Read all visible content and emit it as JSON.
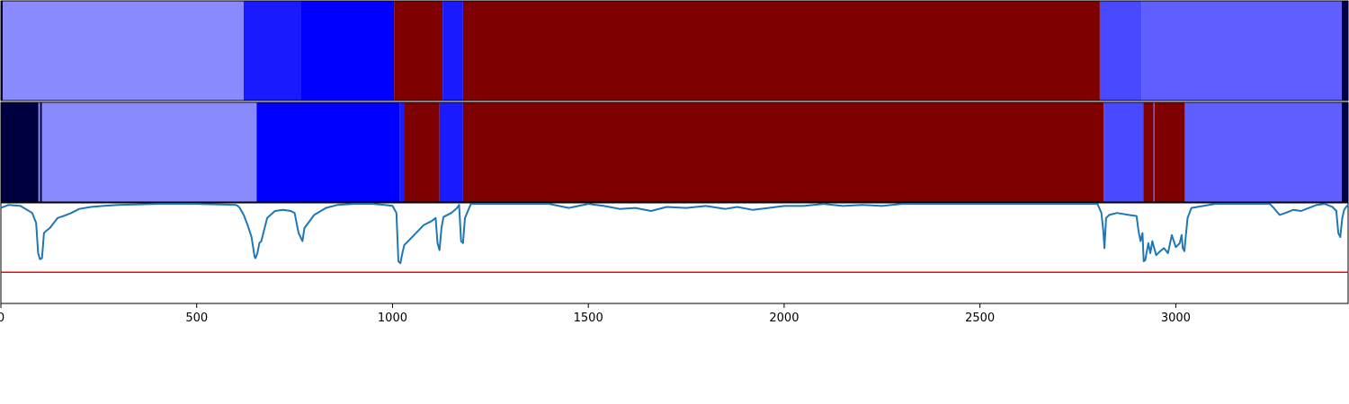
{
  "chart_data": [
    {
      "type": "heatmap",
      "title": "",
      "xlim": [
        0,
        3440
      ],
      "segments": [
        {
          "x0": 0,
          "x1": 5,
          "color": "#000050"
        },
        {
          "x0": 5,
          "x1": 620,
          "color": "#8a8aff"
        },
        {
          "x0": 620,
          "x1": 767,
          "color": "#1a1aff"
        },
        {
          "x0": 767,
          "x1": 1004,
          "color": "#0000ff"
        },
        {
          "x0": 1004,
          "x1": 1128,
          "color": "#7f0000"
        },
        {
          "x0": 1128,
          "x1": 1180,
          "color": "#1a1aff"
        },
        {
          "x0": 1180,
          "x1": 2806,
          "color": "#7f0000"
        },
        {
          "x0": 2806,
          "x1": 2912,
          "color": "#4949ff"
        },
        {
          "x0": 2912,
          "x1": 3424,
          "color": "#5f5fff"
        },
        {
          "x0": 3424,
          "x1": 3440,
          "color": "#000050"
        }
      ]
    },
    {
      "type": "heatmap",
      "title": "",
      "xlim": [
        0,
        3440
      ],
      "segments": [
        {
          "x0": 0,
          "x1": 96,
          "color": "#000040"
        },
        {
          "x0": 96,
          "x1": 100,
          "color": "#8a8aff"
        },
        {
          "x0": 100,
          "x1": 105,
          "color": "#000050"
        },
        {
          "x0": 105,
          "x1": 653,
          "color": "#8a8aff"
        },
        {
          "x0": 653,
          "x1": 1018,
          "color": "#0000ff"
        },
        {
          "x0": 1018,
          "x1": 1030,
          "color": "#1a1aff"
        },
        {
          "x0": 1030,
          "x1": 1120,
          "color": "#7f0000"
        },
        {
          "x0": 1120,
          "x1": 1180,
          "color": "#1a1aff"
        },
        {
          "x0": 1180,
          "x1": 2816,
          "color": "#7f0000"
        },
        {
          "x0": 2816,
          "x1": 2917,
          "color": "#4949ff"
        },
        {
          "x0": 2917,
          "x1": 2943,
          "color": "#7f0000"
        },
        {
          "x0": 2943,
          "x1": 2946,
          "color": "#5f5fff"
        },
        {
          "x0": 2946,
          "x1": 3023,
          "color": "#7f0000"
        },
        {
          "x0": 3023,
          "x1": 3424,
          "color": "#5f5fff"
        },
        {
          "x0": 3424,
          "x1": 3440,
          "color": "#000050"
        }
      ]
    },
    {
      "type": "line",
      "title": "",
      "xlabel": "",
      "ylabel": "",
      "xlim": [
        0,
        3440
      ],
      "ylim": [
        0,
        1
      ],
      "xticks": [
        0,
        500,
        1000,
        1500,
        2000,
        2500,
        3000
      ],
      "xtick_labels": [
        "0",
        "500",
        "1000",
        "1500",
        "2000",
        "2500",
        "3000"
      ],
      "threshold": {
        "y": 0.31,
        "color": "#ff0000"
      },
      "series": [
        {
          "color": "#1f77b4",
          "x": [
            0,
            20,
            50,
            80,
            90,
            95,
            100,
            105,
            110,
            115,
            125,
            145,
            160,
            180,
            200,
            230,
            260,
            300,
            400,
            500,
            600,
            605,
            610,
            620,
            630,
            640,
            648,
            650,
            655,
            660,
            665,
            670,
            680,
            700,
            720,
            740,
            750,
            760,
            770,
            775,
            800,
            830,
            860,
            900,
            950,
            980,
            1000,
            1010,
            1015,
            1020,
            1025,
            1030,
            1040,
            1060,
            1080,
            1100,
            1110,
            1115,
            1120,
            1125,
            1130,
            1150,
            1165,
            1170,
            1175,
            1180,
            1185,
            1200,
            1300,
            1400,
            1450,
            1500,
            1540,
            1580,
            1620,
            1660,
            1700,
            1750,
            1800,
            1850,
            1880,
            1920,
            1960,
            2000,
            2050,
            2100,
            2150,
            2200,
            2250,
            2300,
            2400,
            2500,
            2600,
            2700,
            2800,
            2810,
            2815,
            2818,
            2822,
            2830,
            2850,
            2880,
            2900,
            2905,
            2910,
            2915,
            2918,
            2922,
            2930,
            2935,
            2940,
            2950,
            2960,
            2970,
            2980,
            2990,
            3000,
            3010,
            3015,
            3018,
            3022,
            3025,
            3030,
            3040,
            3100,
            3200,
            3240,
            3250,
            3265,
            3280,
            3300,
            3320,
            3340,
            3360,
            3380,
            3400,
            3410,
            3415,
            3420,
            3425,
            3430,
            3435,
            3440
          ],
          "y": [
            0.95,
            0.98,
            0.97,
            0.9,
            0.8,
            0.5,
            0.44,
            0.45,
            0.7,
            0.72,
            0.75,
            0.85,
            0.87,
            0.9,
            0.94,
            0.96,
            0.97,
            0.98,
            0.99,
            0.99,
            0.98,
            0.97,
            0.95,
            0.88,
            0.78,
            0.66,
            0.46,
            0.45,
            0.5,
            0.6,
            0.62,
            0.7,
            0.85,
            0.92,
            0.93,
            0.92,
            0.9,
            0.7,
            0.62,
            0.75,
            0.88,
            0.95,
            0.98,
            0.99,
            0.99,
            0.98,
            0.97,
            0.9,
            0.42,
            0.4,
            0.5,
            0.58,
            0.62,
            0.7,
            0.78,
            0.82,
            0.85,
            0.6,
            0.53,
            0.75,
            0.86,
            0.9,
            0.95,
            0.98,
            0.62,
            0.6,
            0.85,
            0.99,
            0.99,
            0.99,
            0.95,
            0.99,
            0.97,
            0.94,
            0.95,
            0.92,
            0.96,
            0.95,
            0.97,
            0.94,
            0.96,
            0.93,
            0.95,
            0.97,
            0.97,
            0.99,
            0.97,
            0.98,
            0.97,
            0.99,
            0.99,
            0.99,
            0.99,
            0.99,
            0.99,
            0.9,
            0.72,
            0.55,
            0.85,
            0.88,
            0.9,
            0.88,
            0.87,
            0.72,
            0.62,
            0.7,
            0.42,
            0.43,
            0.6,
            0.5,
            0.62,
            0.48,
            0.52,
            0.55,
            0.5,
            0.68,
            0.56,
            0.6,
            0.68,
            0.55,
            0.52,
            0.65,
            0.85,
            0.95,
            0.99,
            0.99,
            0.99,
            0.95,
            0.88,
            0.9,
            0.93,
            0.92,
            0.95,
            0.98,
            0.99,
            0.96,
            0.92,
            0.7,
            0.66,
            0.85,
            0.93,
            0.96,
            0.98
          ]
        }
      ]
    }
  ]
}
